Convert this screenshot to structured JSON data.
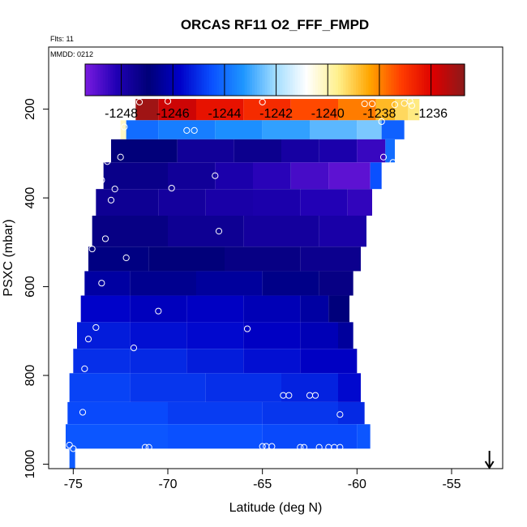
{
  "chart_data": {
    "type": "heatmap",
    "title": "ORCAS RF11 O2_FFF_FMPD",
    "subtitle_flts": "Flts: 11",
    "subtitle_date": "MMDD: 0212",
    "xlabel": "Latitude (deg N)",
    "ylabel": "PSXC (mbar)",
    "xlim": [
      -76.3,
      -52.3
    ],
    "ylim": [
      1010,
      60
    ],
    "y_reversed": true,
    "x_ticks": [
      -75,
      -70,
      -65,
      -60,
      -55
    ],
    "x_tick_labels": [
      "-75",
      "-70",
      "-65",
      "-60",
      "-55"
    ],
    "y_ticks": [
      200,
      400,
      600,
      800,
      1000
    ],
    "y_tick_labels": [
      "200",
      "400",
      "600",
      "800",
      "1000"
    ],
    "colorbar": {
      "min": -1249.4,
      "max": -1234.7,
      "ticks": [
        -1248,
        -1246,
        -1244,
        -1242,
        -1240,
        -1238,
        -1236
      ],
      "tick_labels": [
        "-1248",
        "-1246",
        "-1244",
        "-1242",
        "-1240",
        "-1238",
        "-1236"
      ],
      "colors": [
        "#7a1be0",
        "#2000b4",
        "#000078",
        "#0000c8",
        "#0a50ff",
        "#1e96ff",
        "#a0dcff",
        "#ffffff",
        "#fff08c",
        "#ffa500",
        "#ff3c00",
        "#dc0000",
        "#8b1a1a"
      ]
    },
    "bands": [
      {
        "p1": 177,
        "p2": 225,
        "lat_start": -71.7,
        "lat_end": -56.7,
        "segments": [
          {
            "lat_to": -70.5,
            "value": -1235.0
          },
          {
            "lat_to": -68.5,
            "value": -1235.7
          },
          {
            "lat_to": -66.0,
            "value": -1236.3
          },
          {
            "lat_to": -63.5,
            "value": -1236.8
          },
          {
            "lat_to": -61.0,
            "value": -1237.3
          },
          {
            "lat_to": -59.0,
            "value": -1237.9
          },
          {
            "lat_to": -58.0,
            "value": -1238.7
          },
          {
            "lat_to": -57.3,
            "value": -1239.2
          },
          {
            "lat_to": -56.7,
            "value": -1239.5
          }
        ]
      },
      {
        "p1": 225,
        "p2": 268,
        "lat_start": -72.5,
        "lat_end": -57.5,
        "segments": [
          {
            "lat_to": -72.2,
            "value": -1240.2
          },
          {
            "lat_to": -70.5,
            "value": -1244.0
          },
          {
            "lat_to": -67.5,
            "value": -1243.7
          },
          {
            "lat_to": -65.0,
            "value": -1243.4
          },
          {
            "lat_to": -62.5,
            "value": -1243.1
          },
          {
            "lat_to": -60.0,
            "value": -1242.7
          },
          {
            "lat_to": -58.7,
            "value": -1242.4
          },
          {
            "lat_to": -57.5,
            "value": -1244.2
          }
        ]
      },
      {
        "p1": 268,
        "p2": 320,
        "lat_start": -73.0,
        "lat_end": -58.0,
        "segments": [
          {
            "lat_to": -69.5,
            "value": -1247.0
          },
          {
            "lat_to": -66.5,
            "value": -1247.6
          },
          {
            "lat_to": -64.0,
            "value": -1247.4
          },
          {
            "lat_to": -62.0,
            "value": -1247.8
          },
          {
            "lat_to": -60.0,
            "value": -1248.0
          },
          {
            "lat_to": -58.5,
            "value": -1248.5
          },
          {
            "lat_to": -58.0,
            "value": -1244.0
          }
        ]
      },
      {
        "p1": 320,
        "p2": 380,
        "lat_start": -73.4,
        "lat_end": -58.7,
        "segments": [
          {
            "lat_to": -70.0,
            "value": -1247.3
          },
          {
            "lat_to": -67.5,
            "value": -1247.6
          },
          {
            "lat_to": -65.5,
            "value": -1248.0
          },
          {
            "lat_to": -63.5,
            "value": -1248.3
          },
          {
            "lat_to": -61.5,
            "value": -1248.7
          },
          {
            "lat_to": -59.3,
            "value": -1249.0
          },
          {
            "lat_to": -58.7,
            "value": -1244.5
          }
        ]
      },
      {
        "p1": 380,
        "p2": 440,
        "lat_start": -73.8,
        "lat_end": -59.2,
        "segments": [
          {
            "lat_to": -70.5,
            "value": -1247.5
          },
          {
            "lat_to": -68.0,
            "value": -1247.7
          },
          {
            "lat_to": -65.5,
            "value": -1247.9
          },
          {
            "lat_to": -63.0,
            "value": -1248.0
          },
          {
            "lat_to": -60.5,
            "value": -1248.2
          },
          {
            "lat_to": -59.2,
            "value": -1248.4
          }
        ]
      },
      {
        "p1": 440,
        "p2": 510,
        "lat_start": -74.0,
        "lat_end": -59.5,
        "segments": [
          {
            "lat_to": -70.0,
            "value": -1247.2
          },
          {
            "lat_to": -66.0,
            "value": -1247.5
          },
          {
            "lat_to": -62.0,
            "value": -1247.7
          },
          {
            "lat_to": -59.5,
            "value": -1247.9
          }
        ]
      },
      {
        "p1": 510,
        "p2": 565,
        "lat_start": -74.2,
        "lat_end": -59.8,
        "segments": [
          {
            "lat_to": -71.0,
            "value": -1246.8
          },
          {
            "lat_to": -67.0,
            "value": -1247.0
          },
          {
            "lat_to": -63.0,
            "value": -1247.2
          },
          {
            "lat_to": -59.8,
            "value": -1247.4
          }
        ]
      },
      {
        "p1": 565,
        "p2": 620,
        "lat_start": -74.4,
        "lat_end": -60.2,
        "segments": [
          {
            "lat_to": -72.0,
            "value": -1246.3
          },
          {
            "lat_to": -68.5,
            "value": -1246.6
          },
          {
            "lat_to": -65.0,
            "value": -1246.4
          },
          {
            "lat_to": -62.0,
            "value": -1246.7
          },
          {
            "lat_to": -60.2,
            "value": -1247.2
          }
        ]
      },
      {
        "p1": 620,
        "p2": 680,
        "lat_start": -74.6,
        "lat_end": -60.4,
        "segments": [
          {
            "lat_to": -72.0,
            "value": -1245.7
          },
          {
            "lat_to": -69.0,
            "value": -1245.9
          },
          {
            "lat_to": -66.0,
            "value": -1245.8
          },
          {
            "lat_to": -63.0,
            "value": -1246.0
          },
          {
            "lat_to": -61.5,
            "value": -1246.3
          },
          {
            "lat_to": -60.4,
            "value": -1246.9
          }
        ]
      },
      {
        "p1": 680,
        "p2": 740,
        "lat_start": -74.8,
        "lat_end": -60.2,
        "segments": [
          {
            "lat_to": -72.0,
            "value": -1245.3
          },
          {
            "lat_to": -69.0,
            "value": -1245.5
          },
          {
            "lat_to": -66.0,
            "value": -1245.6
          },
          {
            "lat_to": -63.0,
            "value": -1245.8
          },
          {
            "lat_to": -61.0,
            "value": -1246.0
          },
          {
            "lat_to": -60.2,
            "value": -1246.4
          }
        ]
      },
      {
        "p1": 740,
        "p2": 795,
        "lat_start": -75.0,
        "lat_end": -60.0,
        "segments": [
          {
            "lat_to": -72.0,
            "value": -1245.0
          },
          {
            "lat_to": -69.0,
            "value": -1245.1
          },
          {
            "lat_to": -66.0,
            "value": -1245.3
          },
          {
            "lat_to": -63.0,
            "value": -1245.5
          },
          {
            "lat_to": -60.0,
            "value": -1245.8
          }
        ]
      },
      {
        "p1": 795,
        "p2": 860,
        "lat_start": -75.2,
        "lat_end": -59.8,
        "segments": [
          {
            "lat_to": -72.0,
            "value": -1244.7
          },
          {
            "lat_to": -68.0,
            "value": -1244.9
          },
          {
            "lat_to": -64.0,
            "value": -1245.0
          },
          {
            "lat_to": -61.0,
            "value": -1245.2
          },
          {
            "lat_to": -59.8,
            "value": -1245.6
          }
        ]
      },
      {
        "p1": 860,
        "p2": 910,
        "lat_start": -75.3,
        "lat_end": -59.6,
        "segments": [
          {
            "lat_to": -70.0,
            "value": -1244.6
          },
          {
            "lat_to": -65.0,
            "value": -1244.8
          },
          {
            "lat_to": -61.0,
            "value": -1244.9
          },
          {
            "lat_to": -59.6,
            "value": -1245.1
          }
        ]
      },
      {
        "p1": 910,
        "p2": 965,
        "lat_start": -75.4,
        "lat_end": -59.3,
        "segments": [
          {
            "lat_to": -70.0,
            "value": -1244.4
          },
          {
            "lat_to": -65.0,
            "value": -1244.5
          },
          {
            "lat_to": -60.0,
            "value": -1244.6
          },
          {
            "lat_to": -59.3,
            "value": -1244.4
          }
        ]
      },
      {
        "p1": 965,
        "p2": 1010,
        "lat_start": -75.2,
        "lat_end": -74.9,
        "segments": [
          {
            "lat_to": -74.9,
            "value": -1244.3
          }
        ]
      }
    ],
    "points": [
      {
        "lat": -71.5,
        "p": 184
      },
      {
        "lat": -70.0,
        "p": 182
      },
      {
        "lat": -65.0,
        "p": 184
      },
      {
        "lat": -59.6,
        "p": 188
      },
      {
        "lat": -59.2,
        "p": 188
      },
      {
        "lat": -58.0,
        "p": 190
      },
      {
        "lat": -57.5,
        "p": 187
      },
      {
        "lat": -57.2,
        "p": 182
      },
      {
        "lat": -57.1,
        "p": 192
      },
      {
        "lat": -72.3,
        "p": 240
      },
      {
        "lat": -69.0,
        "p": 248
      },
      {
        "lat": -68.6,
        "p": 248
      },
      {
        "lat": -58.7,
        "p": 228
      },
      {
        "lat": -72.5,
        "p": 308
      },
      {
        "lat": -73.2,
        "p": 318
      },
      {
        "lat": -58.6,
        "p": 308
      },
      {
        "lat": -58.3,
        "p": 330
      },
      {
        "lat": -58.1,
        "p": 320
      },
      {
        "lat": -67.5,
        "p": 350
      },
      {
        "lat": -73.5,
        "p": 360
      },
      {
        "lat": -72.8,
        "p": 380
      },
      {
        "lat": -69.8,
        "p": 378
      },
      {
        "lat": -73.0,
        "p": 405
      },
      {
        "lat": -67.3,
        "p": 475
      },
      {
        "lat": -73.3,
        "p": 492
      },
      {
        "lat": -74.0,
        "p": 515
      },
      {
        "lat": -72.2,
        "p": 535
      },
      {
        "lat": -73.5,
        "p": 592
      },
      {
        "lat": -70.5,
        "p": 655
      },
      {
        "lat": -65.8,
        "p": 695
      },
      {
        "lat": -73.8,
        "p": 692
      },
      {
        "lat": -74.2,
        "p": 718
      },
      {
        "lat": -71.8,
        "p": 738
      },
      {
        "lat": -74.4,
        "p": 785
      },
      {
        "lat": -63.9,
        "p": 845
      },
      {
        "lat": -63.6,
        "p": 845
      },
      {
        "lat": -62.5,
        "p": 845
      },
      {
        "lat": -62.2,
        "p": 845
      },
      {
        "lat": -74.5,
        "p": 883
      },
      {
        "lat": -60.9,
        "p": 888
      },
      {
        "lat": -75.2,
        "p": 957
      },
      {
        "lat": -75.0,
        "p": 965
      },
      {
        "lat": -71.2,
        "p": 962
      },
      {
        "lat": -71.0,
        "p": 962
      },
      {
        "lat": -65.0,
        "p": 960
      },
      {
        "lat": -64.8,
        "p": 960
      },
      {
        "lat": -64.5,
        "p": 960
      },
      {
        "lat": -63.0,
        "p": 962
      },
      {
        "lat": -62.8,
        "p": 962
      },
      {
        "lat": -62.0,
        "p": 962
      },
      {
        "lat": -61.5,
        "p": 962
      },
      {
        "lat": -61.2,
        "p": 962
      },
      {
        "lat": -60.9,
        "p": 962
      }
    ],
    "arrow_marker": {
      "lat": -53.0,
      "direction": "down"
    }
  }
}
